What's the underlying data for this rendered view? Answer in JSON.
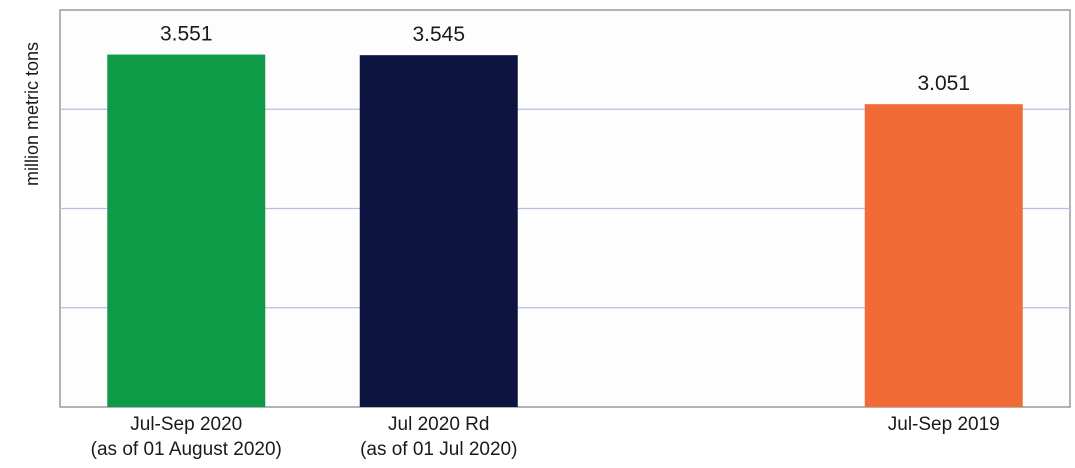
{
  "chart_data": {
    "type": "bar",
    "title": "",
    "xlabel": "",
    "ylabel": "million metric tons",
    "categories": [
      [
        "Jul-Sep 2020",
        "(as of 01 August 2020)"
      ],
      [
        "Jul 2020 Rd",
        "(as of 01 Jul 2020)"
      ],
      [
        ""
      ],
      [
        "Jul-Sep 2019"
      ]
    ],
    "values": [
      3.551,
      3.545,
      null,
      3.051
    ],
    "data_labels": [
      "3.551",
      "3.545",
      "",
      "3.051"
    ],
    "colors": [
      "#0f9a48",
      "#0d1440",
      "",
      "#f26a35"
    ],
    "ylim": [
      0,
      4
    ],
    "grid": true,
    "legend": "none"
  }
}
